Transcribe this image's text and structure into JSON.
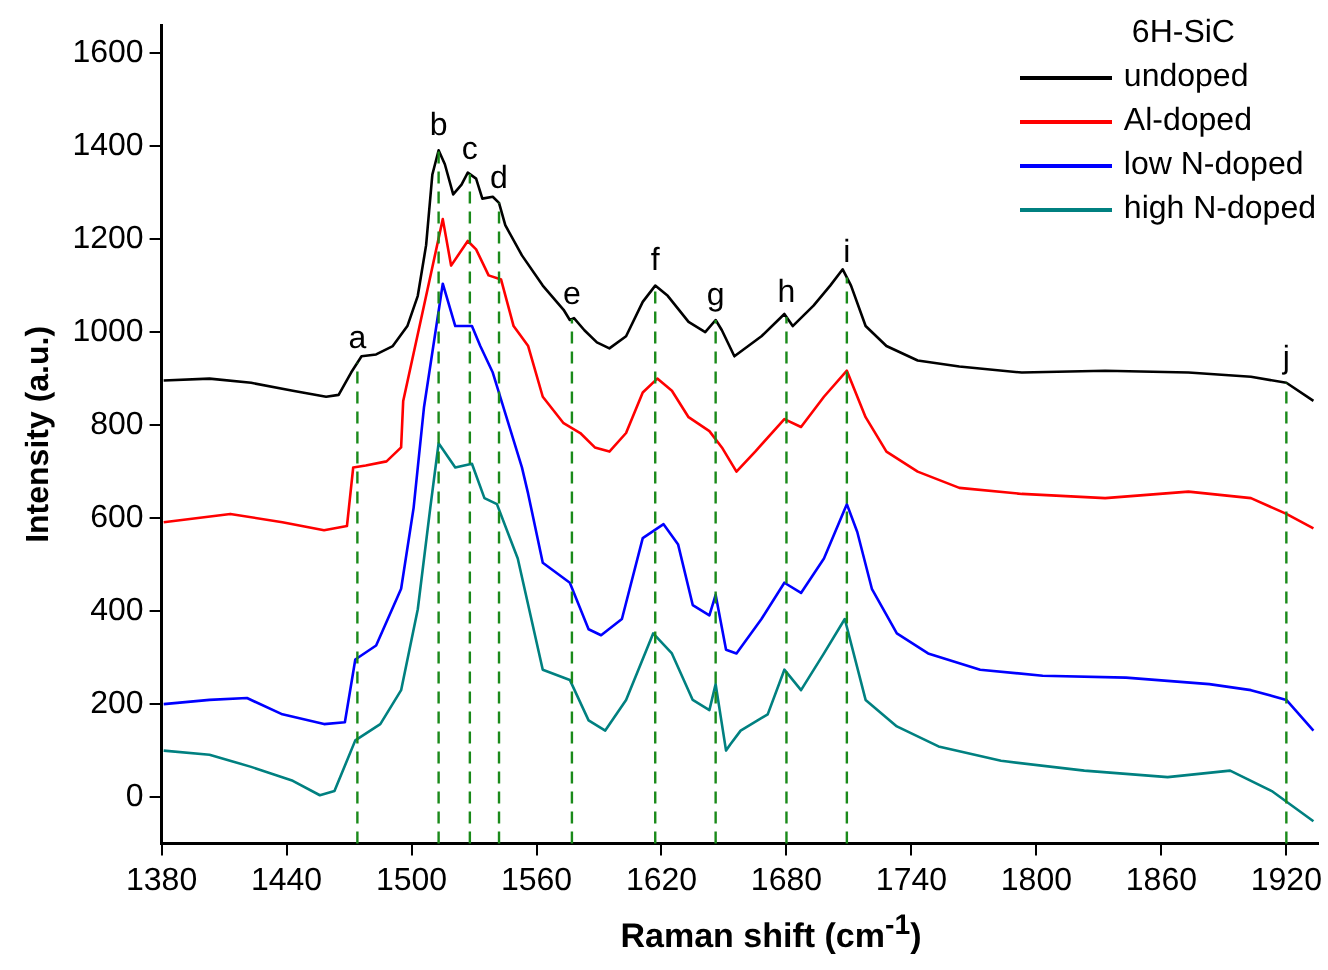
{
  "chart_data": {
    "type": "line",
    "xlabel": "Raman shift (cm$^{-1}$)",
    "ylabel": "Intensity (a.u.)",
    "legend_title": "6H-SiC",
    "legend": "top right",
    "grid": false,
    "marker": "none",
    "line_style": "solid",
    "xlim": [
      1380,
      1935
    ],
    "xticks": [
      1380,
      1440,
      1500,
      1560,
      1620,
      1680,
      1740,
      1800,
      1860,
      1920
    ],
    "ylim": [
      -100,
      1660
    ],
    "yticks": [
      0,
      200,
      400,
      600,
      800,
      1000,
      1200,
      1400,
      1600
    ],
    "series": [
      {
        "name": "undoped",
        "color": "#000000",
        "x": [
          1381,
          1403,
          1423,
          1443,
          1459,
          1465,
          1471,
          1476,
          1483,
          1491,
          1498,
          1503,
          1507,
          1510,
          1513,
          1516,
          1520,
          1524,
          1527,
          1531,
          1534,
          1539,
          1542,
          1545,
          1553,
          1563,
          1573,
          1576,
          1578,
          1583,
          1589,
          1595,
          1603,
          1611,
          1617,
          1623,
          1633,
          1641,
          1646,
          1649,
          1655,
          1668,
          1679,
          1683,
          1693,
          1701,
          1707,
          1711,
          1718,
          1728,
          1743,
          1763,
          1793,
          1833,
          1873,
          1903,
          1920,
          1933
        ],
        "values": [
          896,
          900,
          891,
          874,
          861,
          865,
          913,
          948,
          952,
          970,
          1013,
          1078,
          1187,
          1339,
          1391,
          1361,
          1296,
          1317,
          1343,
          1330,
          1287,
          1291,
          1278,
          1230,
          1165,
          1100,
          1048,
          1026,
          1030,
          1004,
          978,
          965,
          991,
          1065,
          1100,
          1078,
          1022,
          1000,
          1026,
          1004,
          948,
          991,
          1039,
          1013,
          1057,
          1100,
          1135,
          1100,
          1013,
          970,
          939,
          926,
          913,
          917,
          913,
          904,
          891,
          852
        ]
      },
      {
        "name": "Al-doped",
        "color": "#ff0000",
        "x": [
          1381,
          1413,
          1438,
          1458,
          1469,
          1472,
          1478,
          1488,
          1495,
          1496,
          1506,
          1515,
          1519,
          1527,
          1531,
          1537,
          1543,
          1549,
          1556,
          1563,
          1573,
          1581,
          1588,
          1595,
          1603,
          1611,
          1618,
          1625,
          1633,
          1643,
          1649,
          1656,
          1665,
          1679,
          1687,
          1698,
          1709,
          1718,
          1728,
          1743,
          1763,
          1793,
          1833,
          1873,
          1903,
          1920,
          1933
        ],
        "values": [
          591,
          609,
          591,
          574,
          583,
          709,
          713,
          722,
          752,
          852,
          1057,
          1243,
          1143,
          1196,
          1178,
          1122,
          1113,
          1013,
          970,
          861,
          804,
          783,
          752,
          743,
          783,
          870,
          900,
          874,
          817,
          787,
          752,
          700,
          743,
          813,
          796,
          861,
          917,
          817,
          743,
          700,
          665,
          652,
          643,
          657,
          643,
          609,
          578
        ]
      },
      {
        "name": "low N-doped",
        "color": "#0000ff",
        "x": [
          1381,
          1403,
          1421,
          1438,
          1458,
          1468,
          1473,
          1483,
          1495,
          1501,
          1506,
          1515,
          1521,
          1529,
          1533,
          1539,
          1553,
          1556,
          1563,
          1576,
          1585,
          1591,
          1601,
          1611,
          1621,
          1628,
          1635,
          1643,
          1646,
          1651,
          1656,
          1668,
          1679,
          1687,
          1698,
          1709,
          1714,
          1721,
          1733,
          1748,
          1773,
          1803,
          1843,
          1883,
          1903,
          1920,
          1933
        ],
        "values": [
          200,
          209,
          213,
          178,
          157,
          161,
          296,
          326,
          448,
          622,
          839,
          1104,
          1013,
          1013,
          970,
          913,
          709,
          652,
          504,
          461,
          361,
          348,
          383,
          557,
          587,
          543,
          413,
          391,
          435,
          317,
          309,
          383,
          461,
          439,
          513,
          630,
          570,
          448,
          352,
          309,
          274,
          261,
          257,
          243,
          230,
          209,
          143
        ]
      },
      {
        "name": "high N-doped",
        "color": "#008080",
        "x": [
          1381,
          1403,
          1423,
          1443,
          1456,
          1463,
          1473,
          1485,
          1495,
          1503,
          1509,
          1513,
          1521,
          1529,
          1535,
          1541,
          1551,
          1563,
          1576,
          1585,
          1593,
          1603,
          1616,
          1625,
          1635,
          1643,
          1646,
          1651,
          1653,
          1658,
          1671,
          1679,
          1687,
          1698,
          1708,
          1718,
          1733,
          1753,
          1783,
          1823,
          1863,
          1893,
          1913,
          1933
        ],
        "values": [
          100,
          91,
          65,
          35,
          4,
          13,
          122,
          157,
          230,
          404,
          622,
          761,
          709,
          717,
          643,
          630,
          513,
          274,
          252,
          165,
          143,
          209,
          352,
          309,
          209,
          187,
          243,
          100,
          113,
          143,
          178,
          274,
          230,
          309,
          383,
          209,
          152,
          109,
          78,
          57,
          43,
          57,
          13,
          -52
        ]
      }
    ],
    "ref_lines": [
      {
        "axis": "x",
        "value": 1474,
        "label": "a",
        "color": "#1a8a1a",
        "line_style": "dashed"
      },
      {
        "axis": "x",
        "value": 1513,
        "label": "b",
        "color": "#1a8a1a",
        "line_style": "dashed"
      },
      {
        "axis": "x",
        "value": 1528,
        "label": "c",
        "color": "#1a8a1a",
        "line_style": "dashed"
      },
      {
        "axis": "x",
        "value": 1542,
        "label": "d",
        "color": "#1a8a1a",
        "line_style": "dashed"
      },
      {
        "axis": "x",
        "value": 1577,
        "label": "e",
        "color": "#1a8a1a",
        "line_style": "dashed"
      },
      {
        "axis": "x",
        "value": 1617,
        "label": "f",
        "color": "#1a8a1a",
        "line_style": "dashed"
      },
      {
        "axis": "x",
        "value": 1646,
        "label": "g",
        "color": "#1a8a1a",
        "line_style": "dashed"
      },
      {
        "axis": "x",
        "value": 1680,
        "label": "h",
        "color": "#1a8a1a",
        "line_style": "dashed"
      },
      {
        "axis": "x",
        "value": 1709,
        "label": "i",
        "color": "#1a8a1a",
        "line_style": "dashed"
      },
      {
        "axis": "x",
        "value": 1920,
        "label": "j",
        "color": "#1a8a1a",
        "line_style": "dashed"
      }
    ]
  }
}
